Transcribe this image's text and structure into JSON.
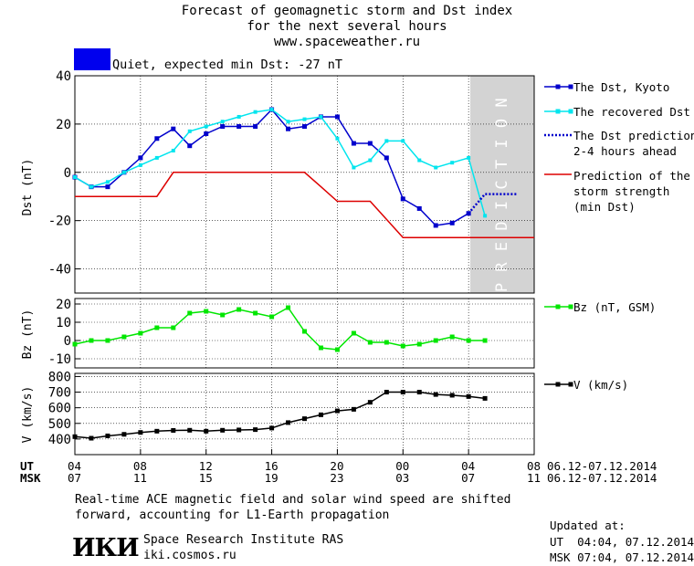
{
  "title": {
    "line1": "Forecast of geomagnetic storm and Dst index",
    "line2": "for the next several hours",
    "line3": "www.spaceweather.ru"
  },
  "status": {
    "text": "Quiet, expected min Dst: -27 nT",
    "color": "#0000ee"
  },
  "colors": {
    "dst": "#0000cc",
    "recovered": "#00e5ee",
    "prediction": "#0000cc",
    "strength": "#dd0000",
    "bz": "#00e600",
    "v": "#000000",
    "shade": "#d3d3d3"
  },
  "prediction_label": "PREDICTION",
  "legend": {
    "dst": "The Dst, Kyoto",
    "recovered": "The recovered Dst",
    "prediction_1": "The Dst prediction",
    "prediction_2": "2-4 hours ahead",
    "strength_1": "Prediction of the",
    "strength_2": "storm strength",
    "strength_3": "(min Dst)",
    "bz": "Bz (nT, GSM)",
    "v": "V (km/s)"
  },
  "axes": {
    "ut_label": "UT",
    "msk_label": "MSK",
    "ut_ticks": [
      "04",
      "08",
      "12",
      "16",
      "20",
      "00",
      "04",
      "08"
    ],
    "msk_ticks": [
      "07",
      "11",
      "15",
      "19",
      "23",
      "03",
      "07",
      "11"
    ],
    "date_range_ut": "06.12-07.12.2014",
    "date_range_msk": "06.12-07.12.2014"
  },
  "footer": {
    "note_1": "Real-time ACE magnetic field and solar wind speed are shifted",
    "note_2": "forward, accounting for L1-Earth propagation",
    "institute": "Space Research Institute RAS",
    "site": "iki.cosmos.ru",
    "logo_text": "ИКИ",
    "updated": "Updated at:",
    "updated_ut": "UT  04:04, 07.12.2014",
    "updated_msk": "MSK 07:04, 07.12.2014"
  },
  "chart_data": [
    {
      "type": "line",
      "title": "Forecast of geomagnetic storm and Dst index",
      "ylabel": "Dst (nT)",
      "xlabel": "UT",
      "x_range_hours": [
        0,
        28
      ],
      "x_start_label": "06.12.2014 04 UT",
      "ylim": [
        -50,
        40
      ],
      "yticks": [
        40,
        20,
        0,
        -20,
        -40
      ],
      "prediction_shade_x": [
        24,
        28
      ],
      "series": [
        {
          "name": "The Dst, Kyoto",
          "x": [
            0,
            1,
            2,
            3,
            4,
            5,
            6,
            7,
            8,
            9,
            10,
            11,
            12,
            13,
            14,
            15,
            16,
            17,
            18,
            19,
            20,
            21,
            22,
            23,
            24
          ],
          "y": [
            -2,
            -6,
            -6,
            0,
            6,
            14,
            18,
            11,
            16,
            19,
            19,
            19,
            26,
            18,
            19,
            23,
            23,
            12,
            12,
            6,
            -11,
            -15,
            -22,
            -21,
            -17
          ]
        },
        {
          "name": "The recovered Dst",
          "x": [
            0,
            1,
            2,
            3,
            4,
            5,
            6,
            7,
            8,
            9,
            10,
            11,
            12,
            13,
            14,
            15,
            16,
            17,
            18,
            19,
            20,
            21,
            22,
            23,
            24,
            25
          ],
          "y": [
            -2,
            -6,
            -4,
            0,
            3,
            6,
            9,
            17,
            19,
            21,
            23,
            25,
            26,
            21,
            22,
            23,
            14,
            2,
            5,
            13,
            13,
            5,
            2,
            4,
            6,
            -18
          ]
        },
        {
          "name": "The Dst prediction 2-4 hours ahead",
          "x": [
            24,
            25,
            26,
            27
          ],
          "y": [
            -17,
            -9,
            -9,
            -9
          ]
        },
        {
          "name": "Prediction of the storm strength (min Dst)",
          "x": [
            0,
            5,
            6,
            14,
            15,
            16,
            18,
            20,
            28
          ],
          "y": [
            -10,
            -10,
            0,
            0,
            -6,
            -12,
            -12,
            -27,
            -27
          ]
        }
      ]
    },
    {
      "type": "line",
      "ylabel": "Bz (nT)",
      "x_range_hours": [
        0,
        28
      ],
      "ylim": [
        -15,
        23
      ],
      "yticks": [
        20,
        10,
        0,
        -10
      ],
      "series": [
        {
          "name": "Bz (nT, GSM)",
          "x": [
            0,
            1,
            2,
            3,
            4,
            5,
            6,
            7,
            8,
            9,
            10,
            11,
            12,
            13,
            14,
            15,
            16,
            17,
            18,
            19,
            20,
            21,
            22,
            23,
            24,
            25
          ],
          "y": [
            -2,
            0,
            0,
            2,
            4,
            7,
            7,
            15,
            16,
            14,
            17,
            15,
            13,
            18,
            5,
            -4,
            -5,
            4,
            -1,
            -1,
            -3,
            -2,
            0,
            2,
            0,
            0
          ]
        }
      ]
    },
    {
      "type": "line",
      "ylabel": "V (km/s)",
      "x_range_hours": [
        0,
        28
      ],
      "ylim": [
        300,
        820
      ],
      "yticks": [
        800,
        700,
        600,
        500,
        400
      ],
      "series": [
        {
          "name": "V (km/s)",
          "x": [
            0,
            1,
            2,
            3,
            4,
            5,
            6,
            7,
            8,
            9,
            10,
            11,
            12,
            13,
            14,
            15,
            16,
            17,
            18,
            19,
            20,
            21,
            22,
            23,
            24,
            25
          ],
          "y": [
            415,
            405,
            420,
            430,
            442,
            450,
            455,
            456,
            450,
            456,
            458,
            460,
            470,
            505,
            530,
            555,
            580,
            590,
            635,
            700,
            700,
            700,
            685,
            680,
            672,
            660
          ]
        }
      ]
    }
  ]
}
